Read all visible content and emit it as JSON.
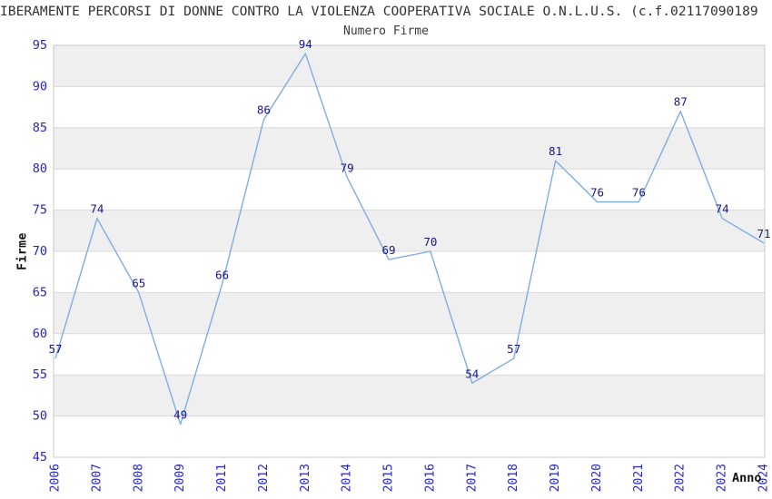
{
  "header": {
    "title": "IBERAMENTE PERCORSI DI DONNE CONTRO LA VIOLENZA COOPERATIVA SOCIALE O.N.L.U.S. (c.f.02117090189",
    "subtitle": "Numero Firme"
  },
  "chart_data": {
    "type": "line",
    "title": "Numero Firme",
    "xlabel": "Anno",
    "ylabel": "Firme",
    "categories": [
      "2006",
      "2007",
      "2008",
      "2009",
      "2011",
      "2012",
      "2013",
      "2014",
      "2015",
      "2016",
      "2017",
      "2018",
      "2019",
      "2020",
      "2021",
      "2022",
      "2023",
      "2024"
    ],
    "values": [
      57,
      74,
      65,
      49,
      66,
      86,
      94,
      79,
      69,
      70,
      54,
      57,
      81,
      76,
      76,
      87,
      74,
      71
    ],
    "ylim": [
      45,
      95
    ],
    "ytick_step": 5,
    "yticks": [
      45,
      50,
      55,
      60,
      65,
      70,
      75,
      80,
      85,
      90,
      95
    ],
    "grid": "horizontal-lines-with-alternating-bands",
    "legend": "none",
    "data_labels": true,
    "colors": {
      "line": "#7dade8",
      "tick_label": "#2525cd",
      "data_label": "#16168c",
      "band": "#efefef",
      "gridline": "#d9d9d9",
      "plot_border": "#c8c8c8",
      "plot_background": "#ffffff"
    }
  }
}
